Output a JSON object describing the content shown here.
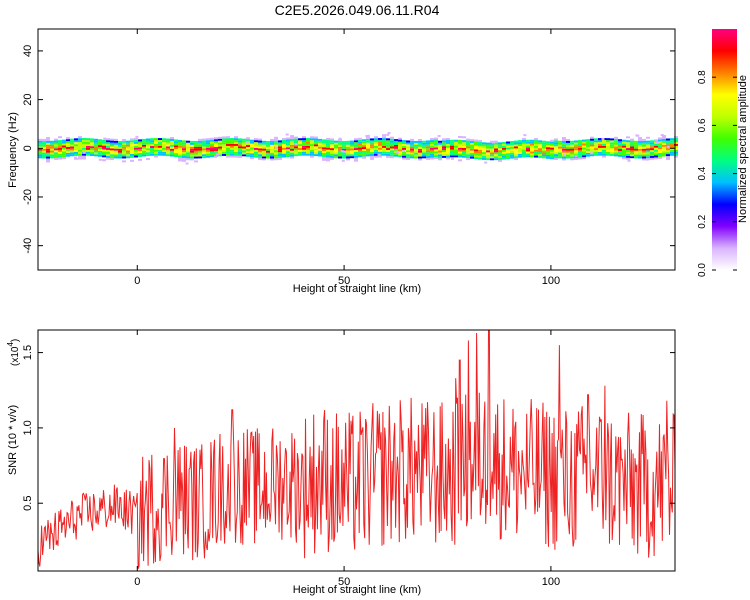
{
  "title": "C2E5.2026.049.06.11.R04",
  "chart_data": [
    {
      "type": "heatmap",
      "xlabel": "Height of straight line (km)",
      "ylabel": "Frequency (Hz)",
      "xlim": [
        -24,
        130
      ],
      "ylim": [
        -50,
        49
      ],
      "xticks": [
        0,
        50,
        100
      ],
      "yticks": [
        -40,
        -20,
        0,
        20,
        40
      ],
      "band": {
        "center_hz": 0,
        "halfwidth_hz": 4
      },
      "colorbar": {
        "label": "Normalized spectral amplitude",
        "range": [
          0.0,
          1.0
        ],
        "ticks": [
          0.0,
          0.2,
          0.4,
          0.6,
          0.8
        ],
        "colors": [
          "#ffffff",
          "#d9b3ff",
          "#8000ff",
          "#0000ff",
          "#00c0ff",
          "#00ff80",
          "#40ff00",
          "#c0ff00",
          "#ffff00",
          "#ff8000",
          "#ff0000",
          "#ff0080"
        ]
      },
      "grid": false
    },
    {
      "type": "line",
      "xlabel": "Height of straight line (km)",
      "ylabel": "SNR (10 * v/v)",
      "multiplier_label": "(x10",
      "multiplier_exp": "4",
      "multiplier_close": ")",
      "xlim": [
        -24,
        130
      ],
      "ylim": [
        0.05,
        1.65
      ],
      "xticks": [
        0,
        50,
        100
      ],
      "yticks": [
        0.5,
        1.0,
        1.5
      ],
      "color": "#ee2222",
      "series": [
        {
          "x": [
            -24,
            -20,
            -15,
            -10,
            -5,
            0,
            5,
            10,
            15,
            20,
            25,
            30,
            35,
            40,
            45,
            50,
            55,
            60,
            65,
            70,
            75,
            80,
            85,
            90,
            95,
            100,
            105,
            110,
            115,
            120,
            125,
            130
          ],
          "y": [
            0.22,
            0.3,
            0.4,
            0.45,
            0.48,
            0.42,
            0.5,
            0.55,
            0.5,
            0.6,
            0.62,
            0.6,
            0.65,
            0.62,
            0.68,
            0.6,
            0.65,
            0.7,
            0.72,
            0.7,
            0.68,
            0.75,
            0.8,
            0.72,
            0.7,
            0.68,
            0.65,
            0.7,
            0.65,
            0.6,
            0.62,
            0.6
          ]
        }
      ],
      "peaks": [
        {
          "x": 9,
          "y": 1.0
        },
        {
          "x": 23,
          "y": 1.12
        },
        {
          "x": 77,
          "y": 1.33
        },
        {
          "x": 78,
          "y": 1.45
        },
        {
          "x": 80,
          "y": 1.58
        },
        {
          "x": 82,
          "y": 1.63
        },
        {
          "x": 85,
          "y": 1.65
        },
        {
          "x": 102,
          "y": 1.55
        },
        {
          "x": 109,
          "y": 1.22
        },
        {
          "x": 113,
          "y": 1.28
        },
        {
          "x": 128,
          "y": 1.18
        }
      ],
      "grid": false
    }
  ]
}
